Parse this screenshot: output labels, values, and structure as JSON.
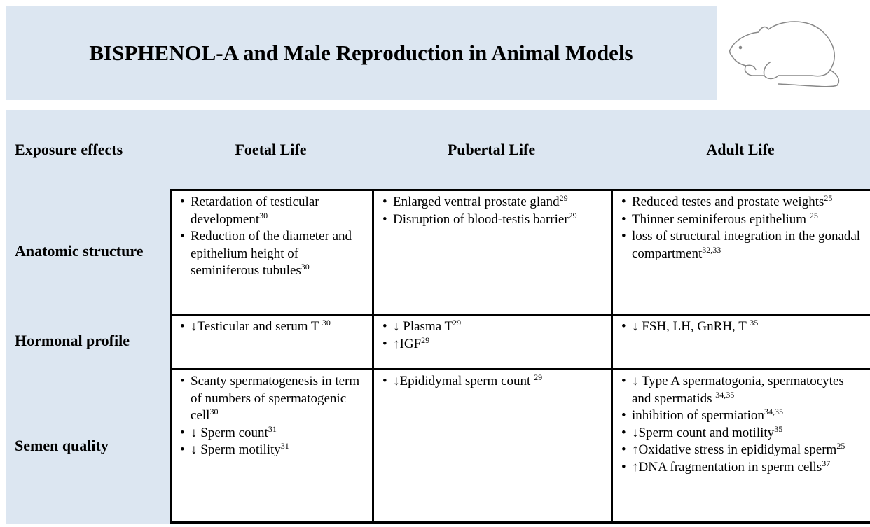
{
  "title": "BISPHENOL-A and Male Reproduction in Animal Models",
  "header": [
    "Exposure effects",
    "Foetal Life",
    "Pubertal Life",
    "Adult Life"
  ],
  "rows": [
    {
      "label": "Anatomic structure",
      "cells": [
        [
          {
            "text": "Retardation of testicular development",
            "sup": "30"
          },
          {
            "text": "Reduction of the diameter and epithelium height of seminiferous tubules",
            "sup": "30"
          }
        ],
        [
          {
            "text": "Enlarged ventral prostate gland",
            "sup": "29"
          },
          {
            "text": "Disruption of blood-testis barrier",
            "sup": "29"
          }
        ],
        [
          {
            "text": "Reduced testes and prostate weights",
            "sup": "25"
          },
          {
            "text": "Thinner seminiferous epithelium ",
            "sup": "25"
          },
          {
            "text": "loss of structural integration in the gonadal compartment",
            "sup": "32,33"
          }
        ]
      ]
    },
    {
      "label": "Hormonal profile",
      "cells": [
        [
          {
            "text": "↓Testicular and serum T ",
            "sup": "30"
          }
        ],
        [
          {
            "text": "↓ Plasma T",
            "sup": "29"
          },
          {
            "text": "↑IGF",
            "sup": "29"
          }
        ],
        [
          {
            "text": "↓ FSH, LH, GnRH, T ",
            "sup": "35"
          }
        ]
      ]
    },
    {
      "label": "Semen quality",
      "cells": [
        [
          {
            "text": "Scanty spermatogenesis in term of numbers of spermatogenic cell",
            "sup": "30"
          },
          {
            "text": "↓ Sperm count",
            "sup": "31"
          },
          {
            "text": "↓ Sperm motility",
            "sup": "31"
          }
        ],
        [
          {
            "text": "↓Epididymal sperm count ",
            "sup": "29"
          }
        ],
        [
          {
            "text": "↓ Type A spermatogonia, spermatocytes and spermatids ",
            "sup": "34,35"
          },
          {
            "text": "inhibition of spermiation",
            "sup": "34,35"
          },
          {
            "text": "↓Sperm count and motility",
            "sup": "35"
          },
          {
            "text": "↑Oxidative stress in epididymal sperm",
            "sup": "25"
          },
          {
            "text": "↑DNA fragmentation in sperm cells",
            "sup": "37"
          }
        ]
      ]
    }
  ]
}
